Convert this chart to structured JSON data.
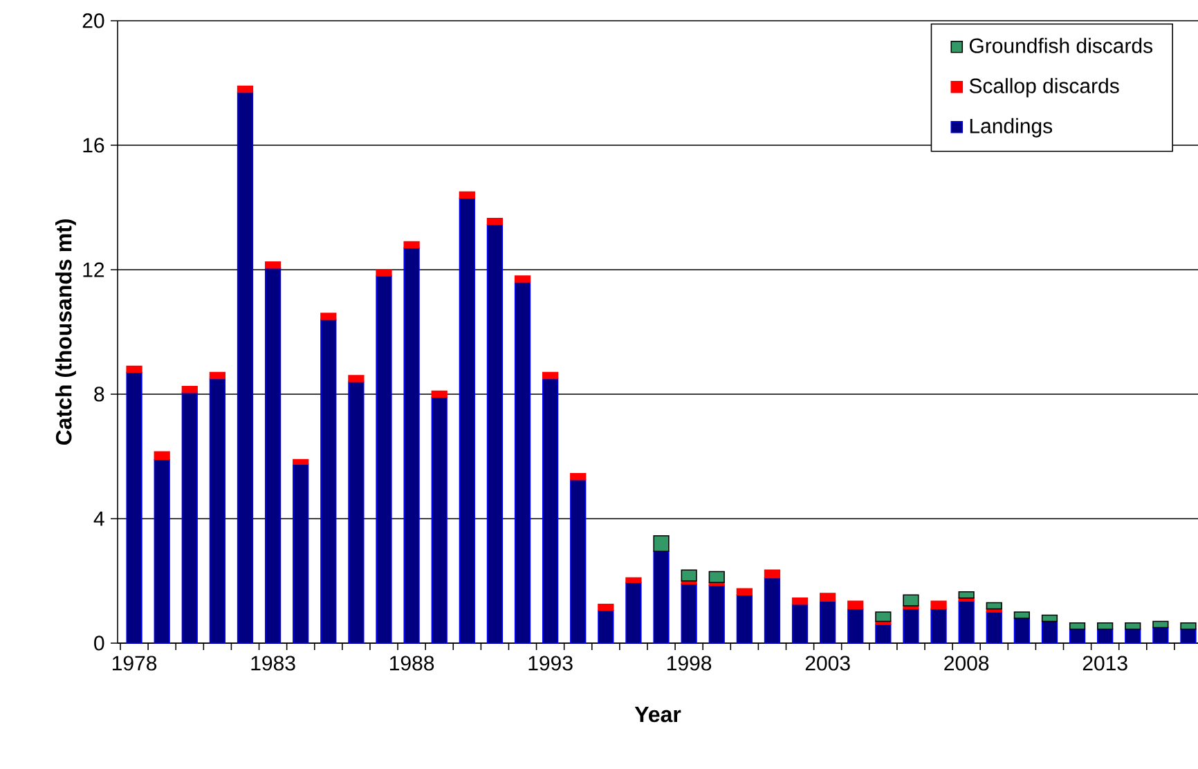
{
  "chart_data": {
    "type": "bar",
    "stacked": true,
    "xlabel": "Year",
    "ylabel": "Catch (thousands mt)",
    "categories": [
      "1978",
      null,
      null,
      null,
      null,
      "1983",
      null,
      null,
      null,
      null,
      "1988",
      null,
      null,
      null,
      null,
      "1993",
      null,
      null,
      null,
      null,
      "1998",
      null,
      null,
      null,
      null,
      "2003",
      null,
      null,
      null,
      null,
      "2008",
      null,
      null,
      null,
      null,
      "2013",
      null,
      null,
      null
    ],
    "series": [
      {
        "name": "Landings",
        "color": "#000080",
        "values": [
          8.7,
          5.9,
          8.05,
          8.5,
          17.7,
          12.05,
          5.75,
          10.4,
          8.4,
          11.8,
          12.7,
          7.9,
          14.3,
          13.45,
          11.6,
          8.5,
          5.25,
          1.05,
          1.95,
          2.95,
          1.9,
          1.85,
          1.55,
          2.1,
          1.25,
          1.35,
          1.1,
          0.6,
          1.1,
          1.1,
          1.35,
          1.0,
          0.8,
          0.7,
          0.45,
          0.45,
          0.45,
          0.5,
          0.45
        ]
      },
      {
        "name": "Scallop discards",
        "color": "#ff0000",
        "values": [
          0.2,
          0.25,
          0.2,
          0.2,
          0.2,
          0.2,
          0.15,
          0.2,
          0.2,
          0.2,
          0.2,
          0.2,
          0.2,
          0.2,
          0.2,
          0.2,
          0.2,
          0.2,
          0.15,
          null,
          0.1,
          0.1,
          0.2,
          0.25,
          0.2,
          0.25,
          0.25,
          0.1,
          0.1,
          0.25,
          0.1,
          0.1,
          null,
          null,
          null,
          null,
          null,
          null,
          null
        ]
      },
      {
        "name": "Groundfish discards",
        "color": "#339966",
        "values": [
          null,
          null,
          null,
          null,
          null,
          null,
          null,
          null,
          null,
          null,
          null,
          null,
          null,
          null,
          null,
          null,
          null,
          null,
          null,
          0.5,
          0.35,
          0.35,
          null,
          null,
          null,
          null,
          null,
          0.3,
          0.35,
          null,
          0.2,
          0.2,
          0.2,
          0.2,
          0.2,
          0.2,
          0.2,
          0.2,
          0.2
        ]
      }
    ],
    "ylim": [
      0,
      20
    ],
    "yticks": [
      0,
      4,
      8,
      12,
      16,
      20
    ],
    "grid": "y",
    "legend": "top right"
  }
}
